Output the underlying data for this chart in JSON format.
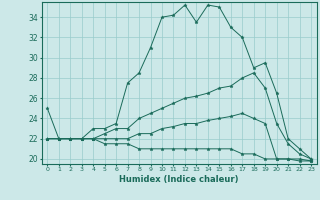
{
  "title": "",
  "xlabel": "Humidex (Indice chaleur)",
  "bg_color": "#cce8e8",
  "grid_color": "#99cccc",
  "line_color": "#1a6b5a",
  "xlim": [
    -0.5,
    23.5
  ],
  "ylim": [
    19.5,
    35.5
  ],
  "yticks": [
    20,
    22,
    24,
    26,
    28,
    30,
    32,
    34
  ],
  "xticks": [
    0,
    1,
    2,
    3,
    4,
    5,
    6,
    7,
    8,
    9,
    10,
    11,
    12,
    13,
    14,
    15,
    16,
    17,
    18,
    19,
    20,
    21,
    22,
    23
  ],
  "series": [
    [
      25,
      22,
      22,
      22,
      23,
      23,
      23.5,
      27.5,
      28.5,
      31,
      34,
      34.2,
      35.2,
      33.5,
      35.2,
      35,
      33,
      32,
      29,
      29.5,
      26.5,
      22,
      21,
      20
    ],
    [
      22,
      22,
      22,
      22,
      22,
      22.5,
      23,
      23,
      24,
      24.5,
      25,
      25.5,
      26,
      26.2,
      26.5,
      27,
      27.2,
      28,
      28.5,
      27,
      23.5,
      21.5,
      20.5,
      20
    ],
    [
      22,
      22,
      22,
      22,
      22,
      22,
      22,
      22,
      22.5,
      22.5,
      23,
      23.2,
      23.5,
      23.5,
      23.8,
      24,
      24.2,
      24.5,
      24,
      23.5,
      20,
      20,
      20,
      19.8
    ],
    [
      22,
      22,
      22,
      22,
      22,
      21.5,
      21.5,
      21.5,
      21,
      21,
      21,
      21,
      21,
      21,
      21,
      21,
      21,
      20.5,
      20.5,
      20,
      20,
      20,
      19.8,
      19.8
    ]
  ],
  "xlabel_fontsize": 6.0,
  "xtick_fontsize": 4.5,
  "ytick_fontsize": 5.5,
  "linewidth": 0.7,
  "markersize": 2.5
}
